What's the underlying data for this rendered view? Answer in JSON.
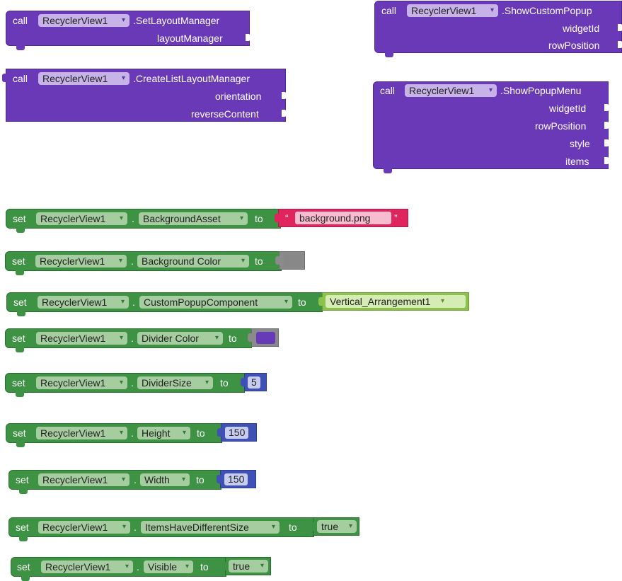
{
  "blocks": {
    "set_layout_manager": {
      "call": "call",
      "component": "RecyclerView1",
      "method": ".SetLayoutManager",
      "params": [
        "layoutManager"
      ]
    },
    "create_list_layout_manager": {
      "call": "call",
      "component": "RecyclerView1",
      "method": ".CreateListLayoutManager",
      "params": [
        "orientation",
        "reverseContent"
      ]
    },
    "show_custom_popup": {
      "call": "call",
      "component": "RecyclerView1",
      "method": ".ShowCustomPopup",
      "params": [
        "widgetId",
        "rowPosition"
      ]
    },
    "show_popup_menu": {
      "call": "call",
      "component": "RecyclerView1",
      "method": ".ShowPopupMenu",
      "params": [
        "widgetId",
        "rowPosition",
        "style",
        "items"
      ]
    },
    "setters": [
      {
        "set": "set",
        "component": "RecyclerView1",
        "dot": ".",
        "property": "BackgroundAsset",
        "to": "to",
        "open_quote": "“",
        "value": "background.png",
        "close_quote": "”"
      },
      {
        "set": "set",
        "component": "RecyclerView1",
        "dot": ".",
        "property": "Background Color",
        "to": "to",
        "color": "#888888"
      },
      {
        "set": "set",
        "component": "RecyclerView1",
        "dot": ".",
        "property": "CustomPopupComponent",
        "to": "to",
        "value": "Vertical_Arrangement1"
      },
      {
        "set": "set",
        "component": "RecyclerView1",
        "dot": ".",
        "property": "Divider Color",
        "to": "to",
        "color": "#673ab7"
      },
      {
        "set": "set",
        "component": "RecyclerView1",
        "dot": ".",
        "property": "DividerSize",
        "to": "to",
        "value": "5"
      },
      {
        "set": "set",
        "component": "RecyclerView1",
        "dot": ".",
        "property": "Height",
        "to": "to",
        "value": "150"
      },
      {
        "set": "set",
        "component": "RecyclerView1",
        "dot": ".",
        "property": "Width",
        "to": "to",
        "value": "150"
      },
      {
        "set": "set",
        "component": "RecyclerView1",
        "dot": ".",
        "property": "ItemsHaveDifferentSize",
        "to": "to",
        "value": "true"
      },
      {
        "set": "set",
        "component": "RecyclerView1",
        "dot": ".",
        "property": "Visible",
        "to": "to",
        "value": "true"
      }
    ]
  },
  "icons": {
    "dropdown": "▾"
  },
  "colors": {
    "procedure_block": "#6a39b8",
    "setter_block": "#3d9343",
    "text_block": "#e0245e",
    "number_block": "#3f51b5",
    "component_block": "#8bc34a",
    "logic_block": "#3d9343",
    "color_block": "#888888"
  }
}
